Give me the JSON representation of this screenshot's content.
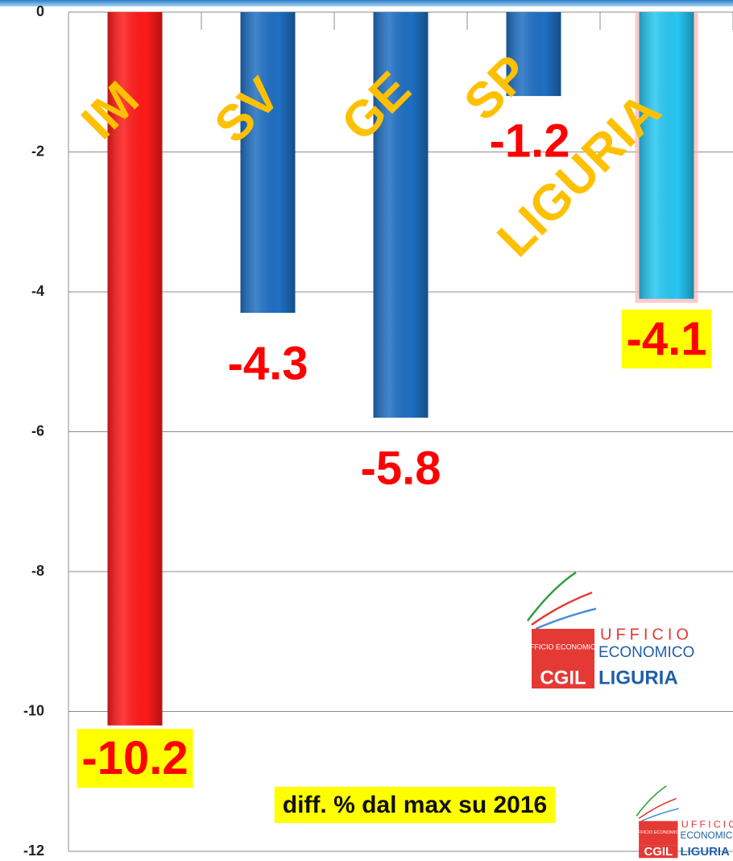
{
  "chart_data": {
    "type": "bar",
    "categories": [
      "IM",
      "SV",
      "GE",
      "SP",
      "LIGURIA"
    ],
    "values": [
      -10.2,
      -4.3,
      -5.8,
      -1.2,
      -4.1
    ],
    "colors": [
      "#ff1a1a",
      "#1f6fc2",
      "#1f6fc2",
      "#1f6fc2",
      "#27c6f2"
    ],
    "value_label_background": [
      "#ffff00",
      null,
      null,
      null,
      "#ffff00"
    ],
    "ylim": [
      -12,
      0
    ],
    "yticks": [
      0,
      -2,
      -4,
      -6,
      -8,
      -10,
      -12
    ],
    "grid": true,
    "annotation": "diff. % dal max su 2016",
    "logo": {
      "small": "UFFICIO ECONOMICO",
      "line1": "UFFICIO",
      "line2": "ECONOMICO",
      "brand": "CGIL",
      "region": "LIGURIA"
    }
  }
}
